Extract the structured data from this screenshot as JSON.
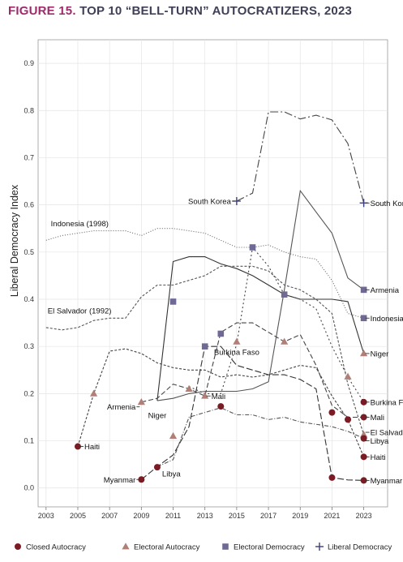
{
  "figure": {
    "title_lead": "FIGURE 15.",
    "title_rest": "TOP 10 “BELL-TURN” AUTOCRATIZERS, 2023"
  },
  "chart_data": {
    "type": "line",
    "title": "FIGURE 15. TOP 10 “BELL-TURN” AUTOCRATIZERS, 2023",
    "xlabel": "",
    "ylabel": "Liberal Democracy Index",
    "xlim": [
      2002.5,
      2024.5
    ],
    "ylim": [
      -0.04,
      0.95
    ],
    "xticks": [
      "2003",
      "2005",
      "2007",
      "2009",
      "2011",
      "2013",
      "2015",
      "2017",
      "2019",
      "2021",
      "2023"
    ],
    "yticks": [
      "0.0",
      "0.1",
      "0.2",
      "0.3",
      "0.4",
      "0.5",
      "0.6",
      "0.7",
      "0.8",
      "0.9"
    ],
    "grid": true,
    "legend_position": "bottom",
    "legend": [
      {
        "label": "Closed Autocracy",
        "marker": "circle",
        "color": "#7b1b24"
      },
      {
        "label": "Electoral Autocracy",
        "marker": "triangle",
        "color": "#b07f78"
      },
      {
        "label": "Electoral Democracy",
        "marker": "square",
        "color": "#6f6a94"
      },
      {
        "label": "Liberal Democracy",
        "marker": "plus",
        "color": "#3d3f7a"
      }
    ],
    "series": [
      {
        "name": "South Korea",
        "dash": "10,3,2,3",
        "color": "#444444",
        "points": [
          [
            2015,
            0.608
          ],
          [
            2016,
            0.625
          ],
          [
            2017,
            0.797
          ],
          [
            2018,
            0.797
          ],
          [
            2019,
            0.782
          ],
          [
            2020,
            0.79
          ],
          [
            2021,
            0.78
          ],
          [
            2022,
            0.73
          ],
          [
            2023,
            0.604
          ]
        ],
        "markers": [
          {
            "x": 2015,
            "y": 0.608,
            "type": "plus"
          },
          {
            "x": 2023,
            "y": 0.604,
            "type": "plus"
          }
        ],
        "labels": [
          {
            "text": "South Korea",
            "x": 2015,
            "y": 0.608,
            "side": "left"
          },
          {
            "text": "South Korea",
            "x": 2023,
            "y": 0.604,
            "side": "right"
          }
        ]
      },
      {
        "name": "Armenia",
        "dash": "",
        "color": "#555555",
        "points": [
          [
            2010,
            0.185
          ],
          [
            2011,
            0.19
          ],
          [
            2012,
            0.2
          ],
          [
            2013,
            0.205
          ],
          [
            2014,
            0.205
          ],
          [
            2015,
            0.205
          ],
          [
            2016,
            0.21
          ],
          [
            2017,
            0.225
          ],
          [
            2018,
            0.42
          ],
          [
            2019,
            0.63
          ],
          [
            2020,
            0.585
          ],
          [
            2021,
            0.54
          ],
          [
            2022,
            0.445
          ],
          [
            2023,
            0.42
          ]
        ],
        "markers": [
          {
            "x": 2023,
            "y": 0.42,
            "type": "square"
          }
        ],
        "labels": [
          {
            "text": "Armenia",
            "x": 2009,
            "y": 0.172,
            "side": "left"
          },
          {
            "text": "Armenia",
            "x": 2023,
            "y": 0.42,
            "side": "right"
          }
        ]
      },
      {
        "name": "Indonesia",
        "dash": "1,2",
        "color": "#666666",
        "points": [
          [
            2003,
            0.525
          ],
          [
            2004,
            0.535
          ],
          [
            2005,
            0.54
          ],
          [
            2006,
            0.545
          ],
          [
            2007,
            0.545
          ],
          [
            2008,
            0.545
          ],
          [
            2009,
            0.535
          ],
          [
            2010,
            0.55
          ],
          [
            2011,
            0.55
          ],
          [
            2012,
            0.545
          ],
          [
            2013,
            0.54
          ],
          [
            2014,
            0.525
          ],
          [
            2015,
            0.51
          ],
          [
            2016,
            0.51
          ],
          [
            2017,
            0.515
          ],
          [
            2018,
            0.5
          ],
          [
            2019,
            0.49
          ],
          [
            2020,
            0.485
          ],
          [
            2021,
            0.44
          ],
          [
            2022,
            0.37
          ],
          [
            2023,
            0.36
          ]
        ],
        "markers": [
          {
            "x": 2023,
            "y": 0.36,
            "type": "square"
          }
        ],
        "labels": [
          {
            "text": "Indonesia (1998)",
            "x": 2003.3,
            "y": 0.555,
            "side": "start"
          },
          {
            "text": "Indonesia",
            "x": 2023,
            "y": 0.36,
            "side": "right"
          }
        ]
      },
      {
        "name": "Niger",
        "dash": "",
        "color": "#333333",
        "points": [
          [
            2010,
            0.185
          ],
          [
            2011,
            0.48
          ],
          [
            2012,
            0.49
          ],
          [
            2013,
            0.49
          ],
          [
            2014,
            0.475
          ],
          [
            2015,
            0.465
          ],
          [
            2016,
            0.45
          ],
          [
            2017,
            0.43
          ],
          [
            2018,
            0.41
          ],
          [
            2019,
            0.4
          ],
          [
            2020,
            0.4
          ],
          [
            2021,
            0.4
          ],
          [
            2022,
            0.395
          ],
          [
            2023,
            0.285
          ]
        ],
        "markers": [
          {
            "x": 2011,
            "y": 0.395,
            "type": "square"
          },
          {
            "x": 2023,
            "y": 0.285,
            "type": "triangle"
          }
        ],
        "labels": [
          {
            "text": "Niger",
            "x": 2010,
            "y": 0.176,
            "side": "below"
          },
          {
            "text": "Niger",
            "x": 2023,
            "y": 0.285,
            "side": "right"
          }
        ]
      },
      {
        "name": "Burkina Faso",
        "dash": "2,3",
        "color": "#444444",
        "points": [
          [
            2012,
            0.215
          ],
          [
            2013,
            0.2
          ],
          [
            2014,
            0.2
          ],
          [
            2015,
            0.305
          ],
          [
            2016,
            0.51
          ],
          [
            2017,
            0.47
          ],
          [
            2018,
            0.41
          ],
          [
            2019,
            0.4
          ],
          [
            2020,
            0.38
          ],
          [
            2021,
            0.3
          ],
          [
            2022,
            0.235
          ],
          [
            2023,
            0.182
          ]
        ],
        "markers": [
          {
            "x": 2016,
            "y": 0.51,
            "type": "square"
          },
          {
            "x": 2018,
            "y": 0.41,
            "type": "square"
          },
          {
            "x": 2015,
            "y": 0.31,
            "type": "triangle"
          },
          {
            "x": 2022,
            "y": 0.236,
            "type": "triangle"
          },
          {
            "x": 2023,
            "y": 0.182,
            "type": "circle"
          }
        ],
        "labels": [
          {
            "text": "Burkina Faso",
            "x": 2015,
            "y": 0.31,
            "side": "below"
          },
          {
            "text": "Burkina Faso",
            "x": 2023,
            "y": 0.182,
            "side": "right"
          }
        ]
      },
      {
        "name": "Mali",
        "dash": "6,3",
        "color": "#444444",
        "points": [
          [
            2009,
            0.182
          ],
          [
            2010,
            0.19
          ],
          [
            2011,
            0.22
          ],
          [
            2012,
            0.21
          ],
          [
            2013,
            0.195
          ],
          [
            2014,
            0.33
          ],
          [
            2015,
            0.35
          ],
          [
            2016,
            0.35
          ],
          [
            2017,
            0.33
          ],
          [
            2018,
            0.31
          ],
          [
            2019,
            0.325
          ],
          [
            2020,
            0.26
          ],
          [
            2021,
            0.175
          ],
          [
            2022,
            0.15
          ],
          [
            2023,
            0.15
          ]
        ],
        "markers": [
          {
            "x": 2009,
            "y": 0.182,
            "type": "triangle"
          },
          {
            "x": 2012,
            "y": 0.21,
            "type": "triangle"
          },
          {
            "x": 2013,
            "y": 0.195,
            "type": "triangle"
          },
          {
            "x": 2014,
            "y": 0.327,
            "type": "square"
          },
          {
            "x": 2018,
            "y": 0.31,
            "type": "triangle"
          },
          {
            "x": 2023,
            "y": 0.15,
            "type": "circle"
          }
        ],
        "labels": [
          {
            "text": "Mali",
            "x": 2013,
            "y": 0.195,
            "side": "right"
          },
          {
            "text": "Mali",
            "x": 2023,
            "y": 0.15,
            "side": "right"
          }
        ]
      },
      {
        "name": "El Salvador",
        "dash": "3,2",
        "color": "#555555",
        "points": [
          [
            2003,
            0.34
          ],
          [
            2004,
            0.335
          ],
          [
            2005,
            0.34
          ],
          [
            2006,
            0.355
          ],
          [
            2007,
            0.36
          ],
          [
            2008,
            0.36
          ],
          [
            2009,
            0.405
          ],
          [
            2010,
            0.43
          ],
          [
            2011,
            0.43
          ],
          [
            2012,
            0.44
          ],
          [
            2013,
            0.45
          ],
          [
            2014,
            0.47
          ],
          [
            2015,
            0.47
          ],
          [
            2016,
            0.47
          ],
          [
            2017,
            0.46
          ],
          [
            2018,
            0.43
          ],
          [
            2019,
            0.42
          ],
          [
            2020,
            0.4
          ],
          [
            2021,
            0.37
          ],
          [
            2022,
            0.22
          ],
          [
            2023,
            0.113
          ]
        ],
        "markers": [
          {
            "x": 2023,
            "y": 0.113,
            "type": "triangle"
          }
        ],
        "labels": [
          {
            "text": "El Salvador (1992)",
            "x": 2003.1,
            "y": 0.37,
            "side": "start"
          },
          {
            "text": "El Salvador",
            "x": 2023,
            "y": 0.118,
            "side": "right"
          }
        ]
      },
      {
        "name": "Libya",
        "dash": "5,2,1,2",
        "color": "#555555",
        "points": [
          [
            2010,
            0.045
          ],
          [
            2011,
            0.06
          ],
          [
            2012,
            0.15
          ],
          [
            2013,
            0.16
          ],
          [
            2014,
            0.17
          ],
          [
            2015,
            0.155
          ],
          [
            2016,
            0.155
          ],
          [
            2017,
            0.145
          ],
          [
            2018,
            0.15
          ],
          [
            2019,
            0.14
          ],
          [
            2020,
            0.135
          ],
          [
            2021,
            0.13
          ],
          [
            2022,
            0.12
          ],
          [
            2023,
            0.105
          ]
        ],
        "markers": [
          {
            "x": 2011,
            "y": 0.11,
            "type": "triangle"
          },
          {
            "x": 2023,
            "y": 0.105,
            "type": "circle"
          }
        ],
        "labels": [
          {
            "text": "Libya",
            "x": 2010,
            "y": 0.045,
            "side": "below-right"
          },
          {
            "text": "Libya",
            "x": 2023,
            "y": 0.1,
            "side": "right"
          }
        ]
      },
      {
        "name": "Haiti",
        "dash": "3,2",
        "color": "#444444",
        "points": [
          [
            2005,
            0.088
          ],
          [
            2006,
            0.2
          ],
          [
            2007,
            0.29
          ],
          [
            2008,
            0.295
          ],
          [
            2009,
            0.285
          ],
          [
            2010,
            0.265
          ],
          [
            2011,
            0.255
          ],
          [
            2012,
            0.25
          ],
          [
            2013,
            0.25
          ],
          [
            2014,
            0.235
          ],
          [
            2015,
            0.24
          ],
          [
            2016,
            0.235
          ],
          [
            2017,
            0.24
          ],
          [
            2018,
            0.25
          ],
          [
            2019,
            0.26
          ],
          [
            2020,
            0.255
          ],
          [
            2021,
            0.195
          ],
          [
            2022,
            0.145
          ],
          [
            2023,
            0.066
          ]
        ],
        "markers": [
          {
            "x": 2005,
            "y": 0.088,
            "type": "circle"
          },
          {
            "x": 2006,
            "y": 0.2,
            "type": "triangle"
          },
          {
            "x": 2023,
            "y": 0.066,
            "type": "circle"
          }
        ],
        "labels": [
          {
            "text": "Haiti",
            "x": 2005,
            "y": 0.088,
            "side": "right"
          },
          {
            "text": "Haiti",
            "x": 2023,
            "y": 0.066,
            "side": "right"
          }
        ]
      },
      {
        "name": "Myanmar",
        "dash": "8,3",
        "color": "#333333",
        "points": [
          [
            2009,
            0.018
          ],
          [
            2010,
            0.045
          ],
          [
            2011,
            0.07
          ],
          [
            2012,
            0.13
          ],
          [
            2013,
            0.3
          ],
          [
            2014,
            0.3
          ],
          [
            2015,
            0.26
          ],
          [
            2016,
            0.25
          ],
          [
            2017,
            0.24
          ],
          [
            2018,
            0.24
          ],
          [
            2019,
            0.23
          ],
          [
            2020,
            0.21
          ],
          [
            2021,
            0.022
          ],
          [
            2022,
            0.017
          ],
          [
            2023,
            0.016
          ]
        ],
        "markers": [
          {
            "x": 2009,
            "y": 0.018,
            "type": "circle"
          },
          {
            "x": 2010,
            "y": 0.044,
            "type": "circle"
          },
          {
            "x": 2013,
            "y": 0.3,
            "type": "square"
          },
          {
            "x": 2014,
            "y": 0.173,
            "type": "circle"
          },
          {
            "x": 2021,
            "y": 0.16,
            "type": "circle"
          },
          {
            "x": 2022,
            "y": 0.145,
            "type": "circle"
          },
          {
            "x": 2021,
            "y": 0.022,
            "type": "circle"
          },
          {
            "x": 2023,
            "y": 0.016,
            "type": "circle"
          }
        ],
        "labels": [
          {
            "text": "Myanmar",
            "x": 2009,
            "y": 0.018,
            "side": "left"
          },
          {
            "text": "Myanmar",
            "x": 2023,
            "y": 0.016,
            "side": "right"
          }
        ]
      }
    ]
  }
}
